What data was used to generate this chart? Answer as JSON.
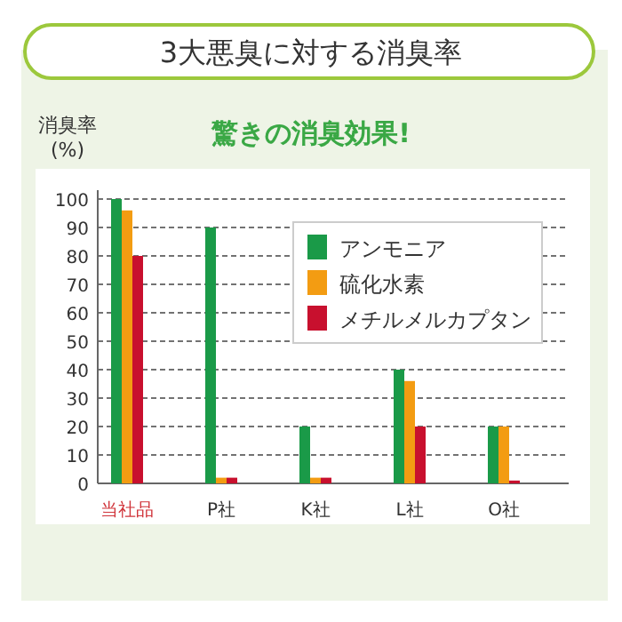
{
  "chart_data": {
    "type": "bar",
    "title": "3大悪臭に対する消臭率",
    "subtitle": "驚きの消臭効果!",
    "ylabel": "消臭率\n(%)",
    "categories": [
      "当社品",
      "P社",
      "K社",
      "L社",
      "O社"
    ],
    "series": [
      {
        "name": "アンモニア",
        "color": "#1a9a48",
        "values": [
          100,
          90,
          20,
          40,
          20
        ]
      },
      {
        "name": "硫化水素",
        "color": "#f39c12",
        "values": [
          96,
          2,
          2,
          36,
          20
        ]
      },
      {
        "name": "メチルメルカプタン",
        "color": "#c8102e",
        "values": [
          80,
          2,
          2,
          20,
          1
        ]
      }
    ],
    "ylim": [
      0,
      100
    ],
    "yticks": [
      0,
      10,
      20,
      30,
      40,
      50,
      60,
      70,
      80,
      90,
      100
    ],
    "grid": "y",
    "legend": "top right"
  }
}
